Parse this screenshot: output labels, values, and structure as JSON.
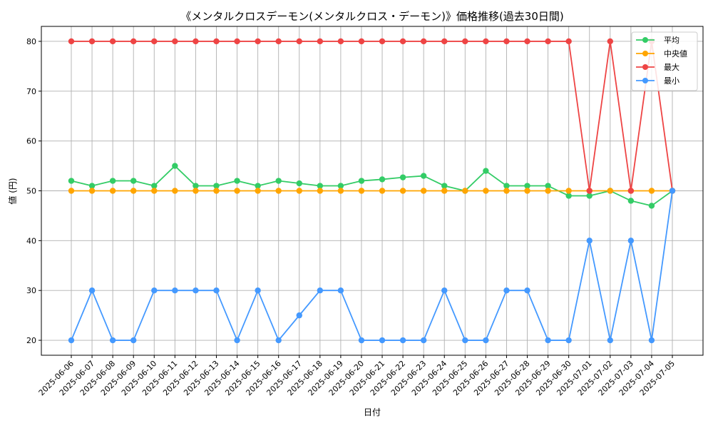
{
  "chart_data": {
    "type": "line",
    "title": "《メンタルクロスデーモン(メンタルクロス・デーモン)》価格推移(過去30日間)",
    "xlabel": "日付",
    "ylabel": "値 (円)",
    "ylim": [
      17,
      83
    ],
    "yticks": [
      20,
      30,
      40,
      50,
      60,
      70,
      80
    ],
    "grid": true,
    "legend_position": "top-right",
    "categories": [
      "2025-06-06",
      "2025-06-07",
      "2025-06-08",
      "2025-06-09",
      "2025-06-10",
      "2025-06-11",
      "2025-06-12",
      "2025-06-13",
      "2025-06-14",
      "2025-06-15",
      "2025-06-16",
      "2025-06-17",
      "2025-06-18",
      "2025-06-19",
      "2025-06-20",
      "2025-06-21",
      "2025-06-22",
      "2025-06-23",
      "2025-06-24",
      "2025-06-25",
      "2025-06-26",
      "2025-06-27",
      "2025-06-28",
      "2025-06-29",
      "2025-06-30",
      "2025-07-01",
      "2025-07-02",
      "2025-07-03",
      "2025-07-04",
      "2025-07-05"
    ],
    "series": [
      {
        "name": "平均",
        "key": "avg",
        "color": "#33cc66",
        "values": [
          52,
          51,
          52,
          52,
          51,
          55,
          51,
          51,
          52,
          51,
          52,
          51.5,
          51,
          51,
          52,
          52.3,
          52.7,
          53,
          51,
          50,
          54,
          51,
          51,
          51,
          49,
          49,
          50,
          48,
          47,
          50
        ]
      },
      {
        "name": "中央値",
        "key": "median",
        "color": "#ffa500",
        "values": [
          50,
          50,
          50,
          50,
          50,
          50,
          50,
          50,
          50,
          50,
          50,
          50,
          50,
          50,
          50,
          50,
          50,
          50,
          50,
          50,
          50,
          50,
          50,
          50,
          50,
          50,
          50,
          50,
          50,
          50
        ]
      },
      {
        "name": "最大",
        "key": "max",
        "color": "#ee4444",
        "values": [
          80,
          80,
          80,
          80,
          80,
          80,
          80,
          80,
          80,
          80,
          80,
          80,
          80,
          80,
          80,
          80,
          80,
          80,
          80,
          80,
          80,
          80,
          80,
          80,
          80,
          50,
          80,
          50,
          80,
          50
        ]
      },
      {
        "name": "最小",
        "key": "min",
        "color": "#4499ff",
        "values": [
          20,
          30,
          20,
          20,
          30,
          30,
          30,
          30,
          20,
          30,
          20,
          25,
          30,
          30,
          20,
          20,
          20,
          20,
          30,
          20,
          20,
          30,
          30,
          20,
          20,
          40,
          20,
          40,
          20,
          50
        ]
      }
    ]
  }
}
